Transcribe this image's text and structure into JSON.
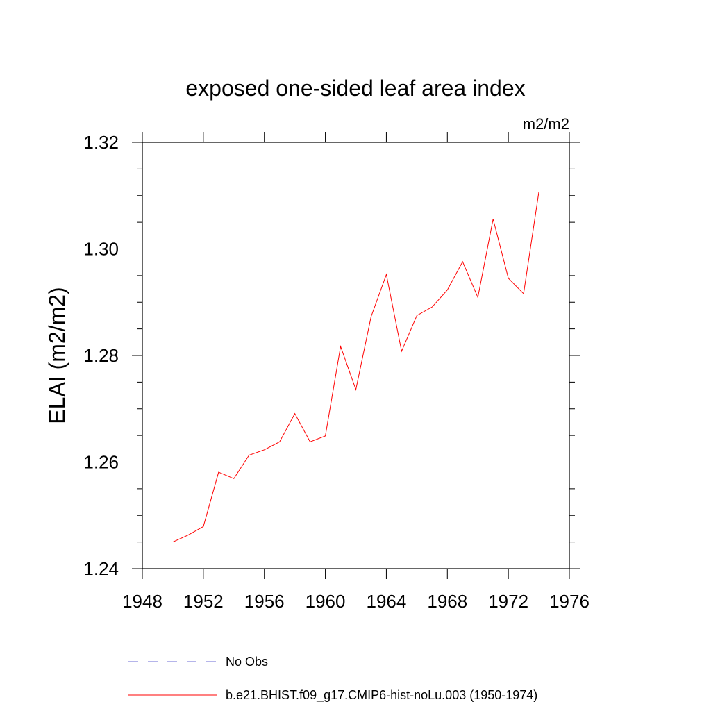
{
  "chart_data": {
    "type": "line",
    "title": "exposed one-sided leaf area index",
    "units_label": "m2/m2",
    "ylabel": "ELAI  (m2/m2)",
    "xlabel": "",
    "xlim": [
      1948,
      1976
    ],
    "ylim": [
      1.24,
      1.32
    ],
    "x_ticks": [
      1948,
      1952,
      1956,
      1960,
      1964,
      1968,
      1972,
      1976
    ],
    "x_tick_labels": [
      "1948",
      "1952",
      "1956",
      "1960",
      "1964",
      "1968",
      "1972",
      "1976"
    ],
    "y_ticks": [
      1.24,
      1.26,
      1.28,
      1.3,
      1.32
    ],
    "y_tick_labels": [
      "1.24",
      "1.26",
      "1.28",
      "1.30",
      "1.32"
    ],
    "grid": false,
    "legend_position": "bottom",
    "series": [
      {
        "name": "b.e21.BHIST.f09_g17.CMIP6-hist-noLu.003 (1950-1974)",
        "color": "#ff0000",
        "style": "solid",
        "x": [
          1950,
          1951,
          1952,
          1953,
          1954,
          1955,
          1956,
          1957,
          1958,
          1959,
          1960,
          1961,
          1962,
          1963,
          1964,
          1965,
          1966,
          1967,
          1968,
          1969,
          1970,
          1971,
          1972,
          1973,
          1974
        ],
        "values": [
          1.245,
          1.2463,
          1.2479,
          1.2581,
          1.2569,
          1.2613,
          1.2623,
          1.2638,
          1.2691,
          1.2638,
          1.2649,
          1.2817,
          1.2736,
          1.2873,
          1.2952,
          1.2808,
          1.2875,
          1.2891,
          1.2923,
          1.2976,
          1.2909,
          1.3056,
          1.2945,
          1.2916,
          1.3107
        ]
      }
    ],
    "legend": [
      {
        "label": "No Obs",
        "color": "#6b6bd6",
        "style": "dashed"
      },
      {
        "label": "b.e21.BHIST.f09_g17.CMIP6-hist-noLu.003 (1950-1974)",
        "color": "#ff0000",
        "style": "solid"
      }
    ]
  }
}
